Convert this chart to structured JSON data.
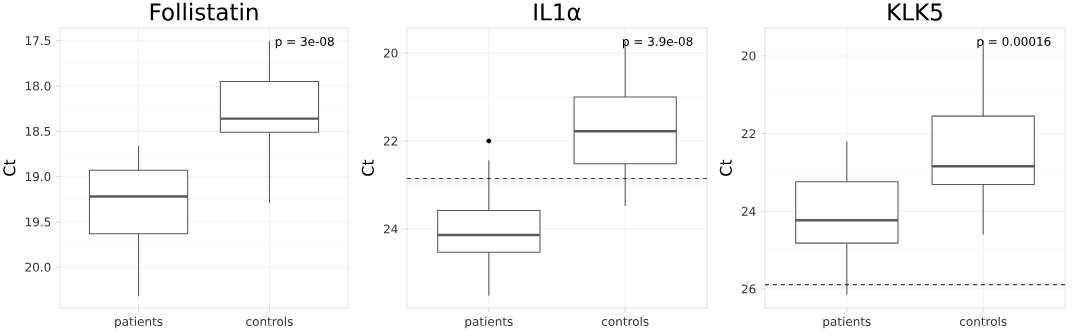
{
  "chart_data": [
    {
      "type": "box",
      "title": "Follistatin",
      "ylabel": "Ct",
      "categories": [
        "patients",
        "controls"
      ],
      "color": "#595959",
      "boxes": [
        {
          "low": 18.66,
          "q1": 18.93,
          "median": 19.22,
          "q3": 19.63,
          "high": 20.32
        },
        {
          "low": 17.5,
          "q1": 17.95,
          "median": 18.36,
          "q3": 18.51,
          "high": 19.29
        }
      ],
      "ylim": [
        20.45,
        17.36
      ],
      "yticks": [
        {
          "value": 17.5,
          "label": "17.5"
        },
        {
          "value": 18,
          "label": "18.0"
        },
        {
          "value": 18.5,
          "label": "18.5"
        },
        {
          "value": 19,
          "label": "19.0"
        },
        {
          "value": 19.5,
          "label": "19.5"
        },
        {
          "value": 20,
          "label": "20.0"
        }
      ],
      "grid": true,
      "annotations": [
        "p = 3e-08"
      ]
    },
    {
      "type": "box",
      "title": "IL1α",
      "ylabel": "Ct",
      "categories": [
        "patients",
        "controls"
      ],
      "color": "#595959",
      "boxes": [
        {
          "low": 22.44,
          "q1": 23.58,
          "median": 24.14,
          "q3": 24.53,
          "high": 25.52,
          "outliers": [
            22.0
          ]
        },
        {
          "low": 19.73,
          "q1": 21.0,
          "median": 21.78,
          "q3": 22.52,
          "high": 23.48
        }
      ],
      "ylim": [
        25.8,
        19.43
      ],
      "yticks": [
        20,
        22,
        24
      ],
      "grid": true,
      "annotations": [
        "p = 3.9e-08"
      ],
      "ref_lines": [
        {
          "axis": "y",
          "value": 22.86,
          "color": "#000000",
          "line_style": "dashed"
        }
      ]
    },
    {
      "type": "box",
      "title": "KLK5",
      "ylabel": "Ct",
      "categories": [
        "patients",
        "controls"
      ],
      "color": "#595959",
      "boxes": [
        {
          "low": 22.2,
          "q1": 23.24,
          "median": 24.23,
          "q3": 24.82,
          "high": 26.15
        },
        {
          "low": 19.6,
          "q1": 21.55,
          "median": 22.84,
          "q3": 23.31,
          "high": 24.6
        }
      ],
      "ylim": [
        26.49,
        19.28
      ],
      "yticks": [
        20,
        22,
        24,
        26
      ],
      "grid": true,
      "annotations": [
        "p = 0.00016"
      ],
      "ref_lines": [
        {
          "axis": "y",
          "value": 25.89,
          "color": "#000000",
          "line_style": "dashed"
        }
      ]
    }
  ]
}
